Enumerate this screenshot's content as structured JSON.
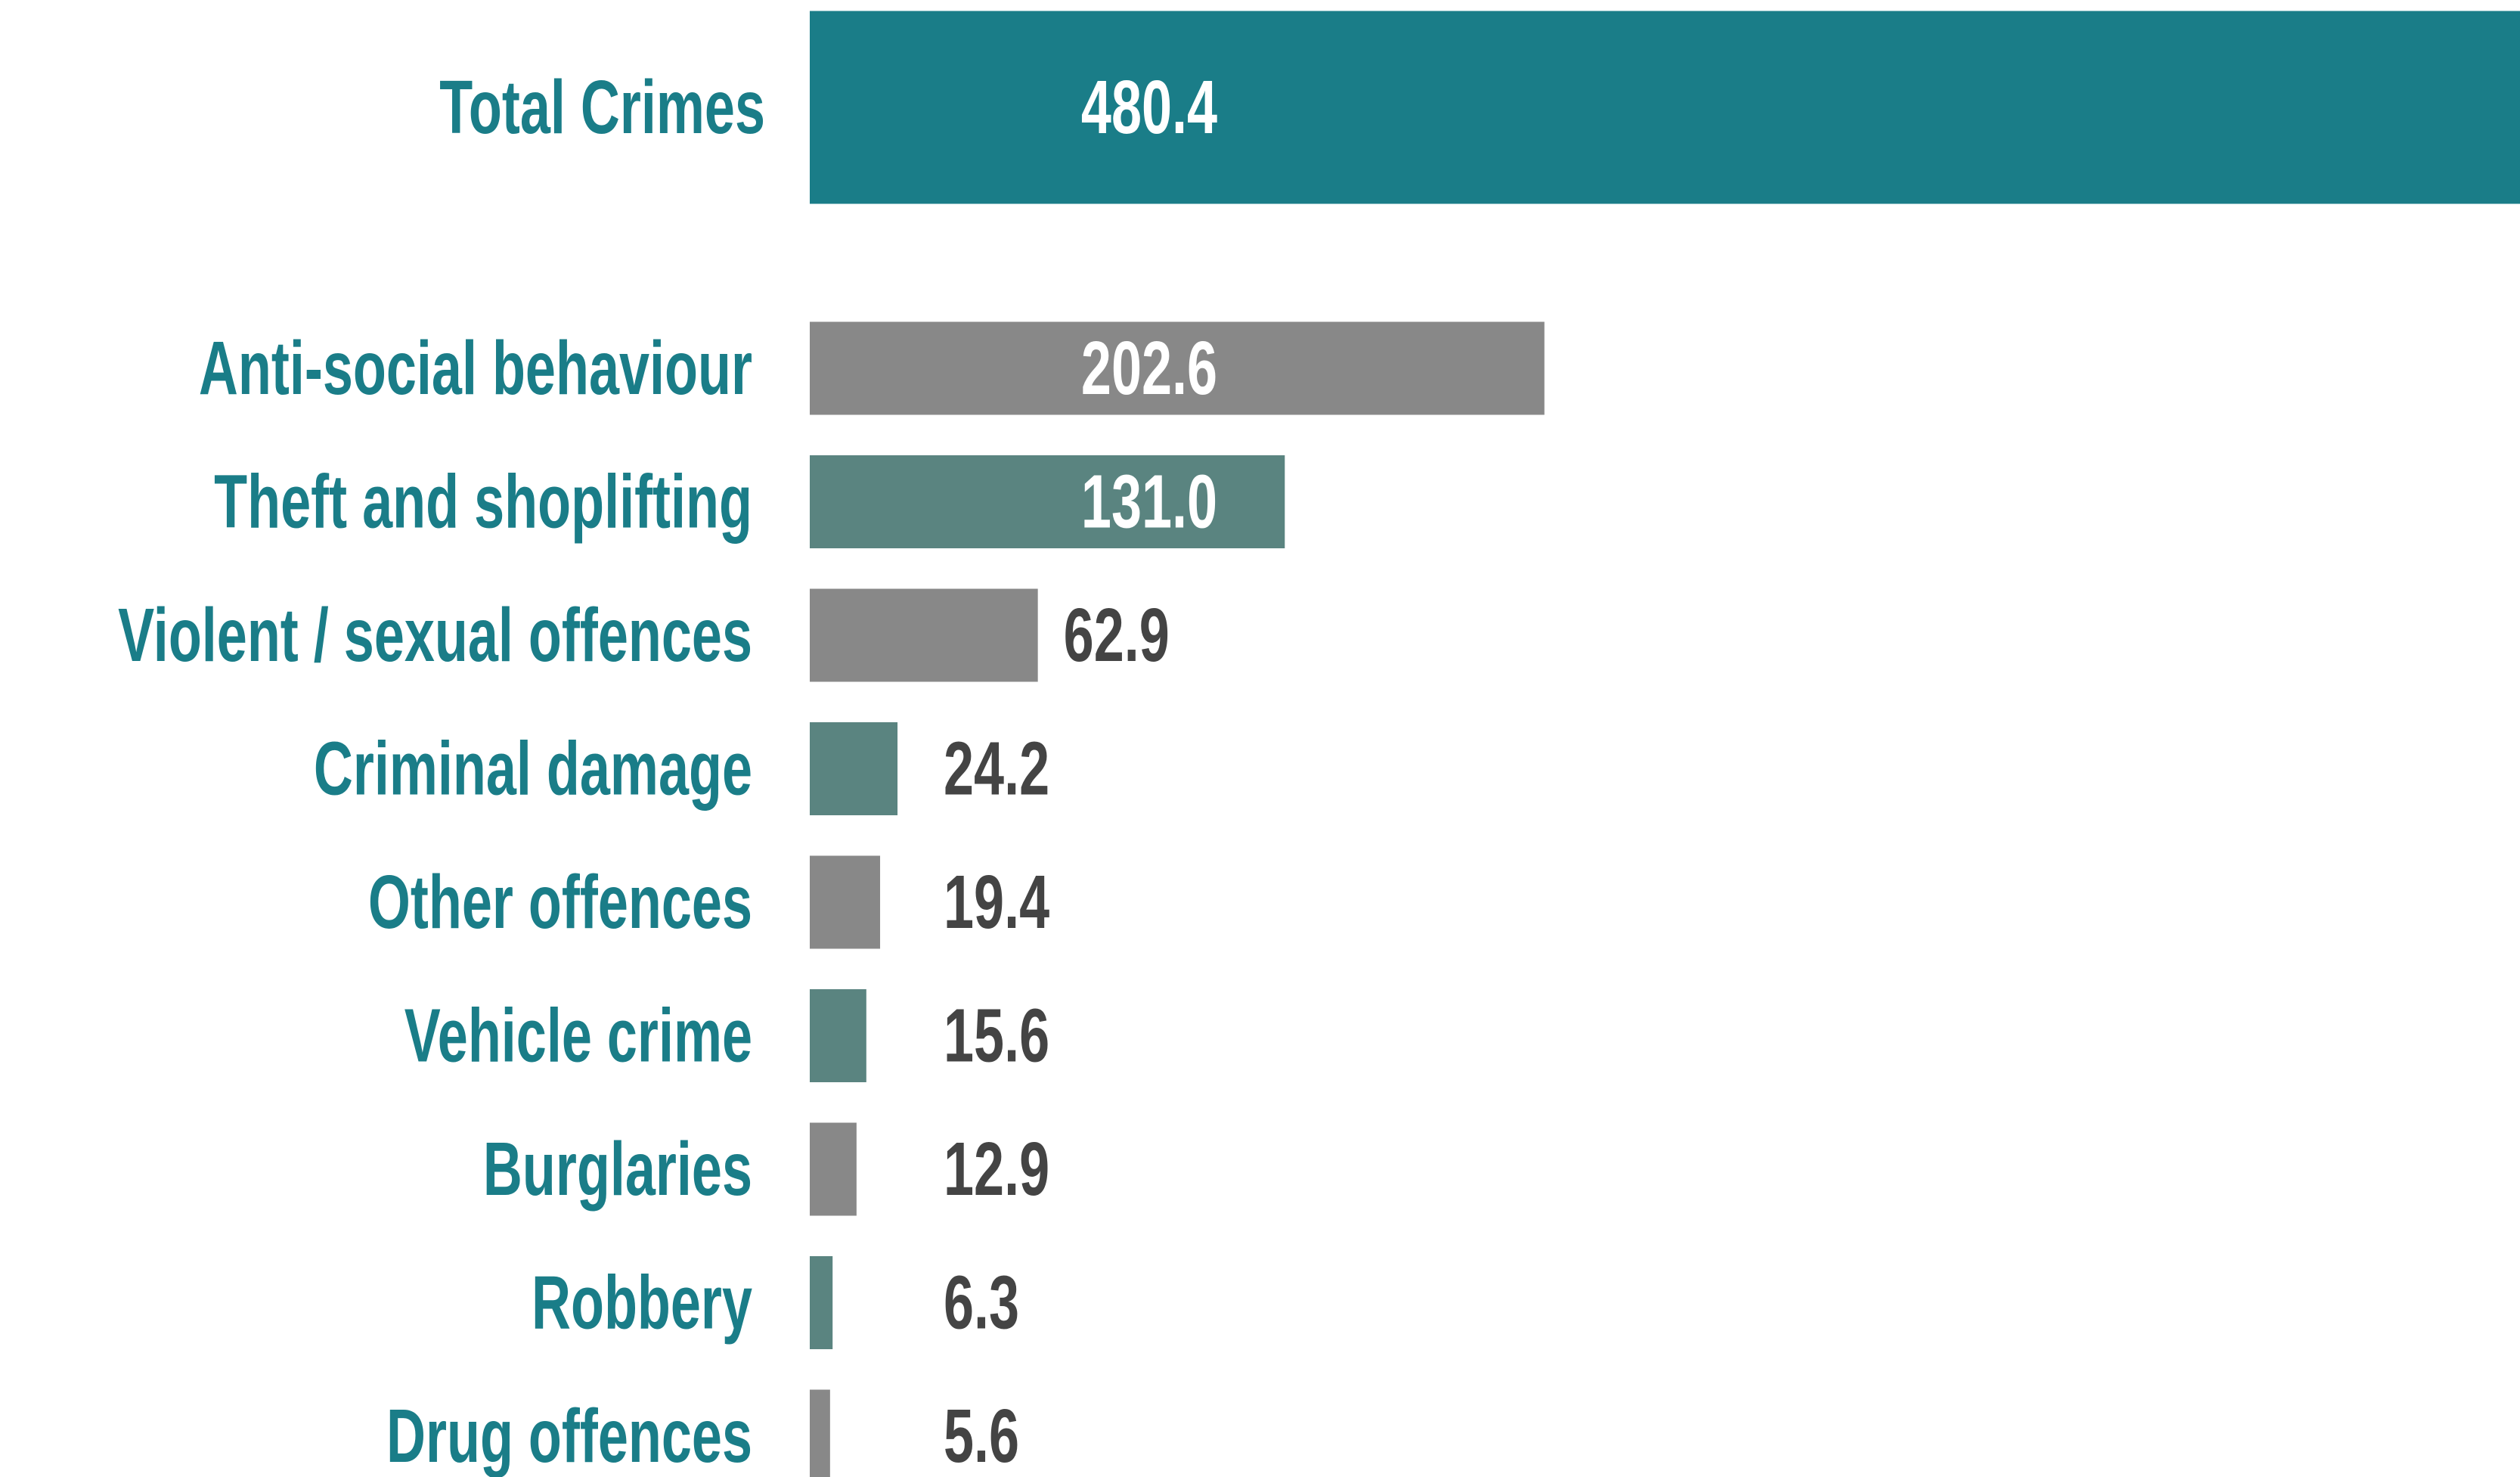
{
  "chart_data": {
    "type": "barh",
    "categories": [
      "Total Crimes",
      "Anti-social behaviour",
      "Theft and shoplifting",
      "Violent / sexual offences",
      "Criminal damage",
      "Other offences",
      "Vehicle crime",
      "Burglaries",
      "Robbery",
      "Drug offences"
    ],
    "values": [
      480.4,
      202.6,
      131.0,
      62.9,
      24.2,
      19.4,
      15.6,
      12.9,
      6.3,
      5.6
    ],
    "value_labels": [
      "480.4",
      "202.6",
      "131.0",
      "62.9",
      "24.2",
      "19.4",
      "15.6",
      "12.9",
      "6.3",
      "5.6"
    ],
    "colors": [
      "#1a7d88",
      "#888888",
      "#5a8480",
      "#888888",
      "#5a8480",
      "#888888",
      "#5a8480",
      "#888888",
      "#5a8480",
      "#888888"
    ]
  }
}
